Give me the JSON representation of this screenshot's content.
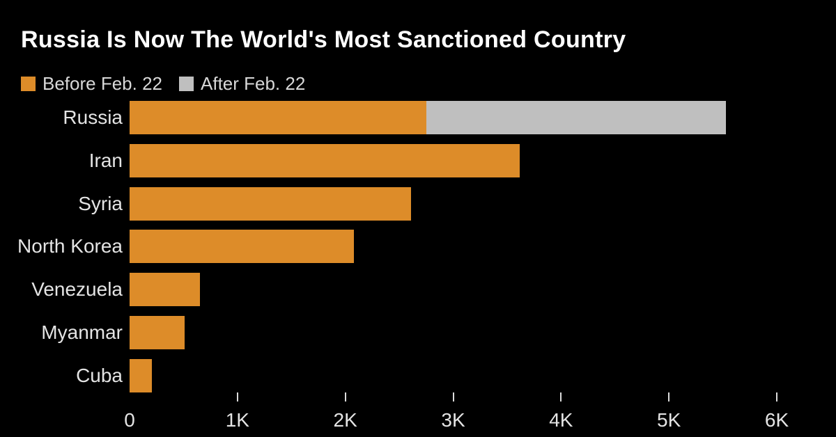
{
  "title": "Russia Is Now The World's Most Sanctioned Country",
  "legend": {
    "items": [
      {
        "label": "Before Feb. 22",
        "color": "#DD8C29"
      },
      {
        "label": "After Feb. 22",
        "color": "#BFBFBF"
      }
    ]
  },
  "chart_data": {
    "type": "bar",
    "orientation": "horizontal",
    "stacked": true,
    "title": "Russia Is Now The World's Most Sanctioned Country",
    "categories": [
      "Russia",
      "Iran",
      "Syria",
      "North Korea",
      "Venezuela",
      "Myanmar",
      "Cuba"
    ],
    "series": [
      {
        "name": "Before Feb. 22",
        "color": "#DD8C29",
        "values": [
          2754,
          3616,
          2608,
          2077,
          651,
          510,
          208
        ]
      },
      {
        "name": "After Feb. 22",
        "color": "#BFBFBF",
        "values": [
          2776,
          0,
          0,
          0,
          0,
          0,
          0
        ]
      }
    ],
    "xlabel": "",
    "ylabel": "",
    "xlim": [
      0,
      6000
    ],
    "x_ticks": [
      {
        "value": 0,
        "label": "0",
        "has_tick": false
      },
      {
        "value": 1000,
        "label": "1K",
        "has_tick": true
      },
      {
        "value": 2000,
        "label": "2K",
        "has_tick": true
      },
      {
        "value": 3000,
        "label": "3K",
        "has_tick": true
      },
      {
        "value": 4000,
        "label": "4K",
        "has_tick": true
      },
      {
        "value": 5000,
        "label": "5K",
        "has_tick": true
      },
      {
        "value": 6000,
        "label": "6K",
        "has_tick": true
      }
    ],
    "grid": false,
    "legend_position": "top-left",
    "background": "#000000"
  },
  "colors": {
    "background": "#000000",
    "title_text": "#FFFFFF",
    "legend_text": "#D8D8D8",
    "label_text": "#E4E4E4",
    "axis_tick": "#DCDCDC",
    "before_bar": "#DD8C29",
    "after_bar": "#BFBFBF"
  }
}
